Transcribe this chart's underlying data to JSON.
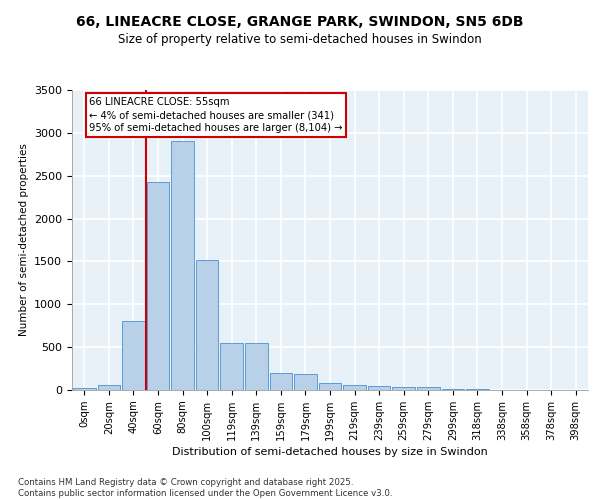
{
  "title1": "66, LINEACRE CLOSE, GRANGE PARK, SWINDON, SN5 6DB",
  "title2": "Size of property relative to semi-detached houses in Swindon",
  "xlabel": "Distribution of semi-detached houses by size in Swindon",
  "ylabel": "Number of semi-detached properties",
  "categories": [
    "0sqm",
    "20sqm",
    "40sqm",
    "60sqm",
    "80sqm",
    "100sqm",
    "119sqm",
    "139sqm",
    "159sqm",
    "179sqm",
    "199sqm",
    "219sqm",
    "239sqm",
    "259sqm",
    "279sqm",
    "299sqm",
    "318sqm",
    "338sqm",
    "358sqm",
    "378sqm",
    "398sqm"
  ],
  "values": [
    20,
    55,
    800,
    2430,
    2900,
    1520,
    545,
    545,
    200,
    185,
    80,
    55,
    45,
    35,
    30,
    15,
    10,
    5,
    3,
    2,
    1
  ],
  "bar_color": "#b8d0e8",
  "bar_edge_color": "#5b9bd5",
  "annotation_text": "66 LINEACRE CLOSE: 55sqm\n← 4% of semi-detached houses are smaller (341)\n95% of semi-detached houses are larger (8,104) →",
  "annotation_box_color": "#ffffff",
  "annotation_box_edge": "#cc0000",
  "vline_color": "#cc0000",
  "ylim": [
    0,
    3500
  ],
  "yticks": [
    0,
    500,
    1000,
    1500,
    2000,
    2500,
    3000,
    3500
  ],
  "footnote": "Contains HM Land Registry data © Crown copyright and database right 2025.\nContains public sector information licensed under the Open Government Licence v3.0.",
  "bg_color": "#e8f0f8",
  "grid_color": "#ffffff",
  "title1_fontsize": 10,
  "title2_fontsize": 8.5,
  "vline_x_index": 2.5
}
